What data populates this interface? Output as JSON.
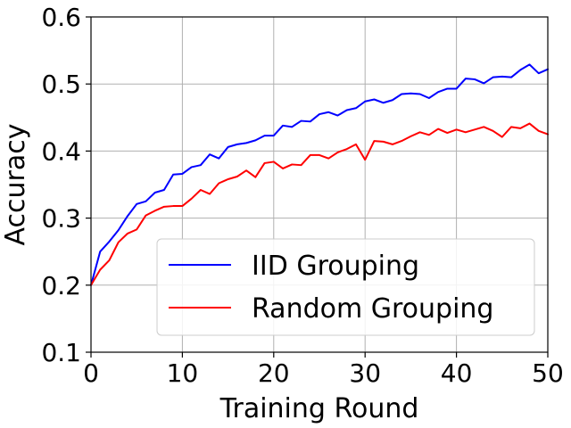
{
  "chart_data": {
    "type": "line",
    "title": "",
    "xlabel": "Training Round",
    "ylabel": "Accuracy",
    "xlim": [
      0,
      50
    ],
    "ylim": [
      0.1,
      0.6
    ],
    "xticks": [
      0,
      10,
      20,
      30,
      40,
      50
    ],
    "yticks": [
      0.1,
      0.2,
      0.3,
      0.4,
      0.5,
      0.6
    ],
    "xtick_labels": [
      "0",
      "10",
      "20",
      "30",
      "40",
      "50"
    ],
    "ytick_labels": [
      "0.1",
      "0.2",
      "0.3",
      "0.4",
      "0.5",
      "0.6"
    ],
    "grid": true,
    "legend_position": "lower-right",
    "x": [
      0,
      1,
      2,
      3,
      4,
      5,
      6,
      7,
      8,
      9,
      10,
      11,
      12,
      13,
      14,
      15,
      16,
      17,
      18,
      19,
      20,
      21,
      22,
      23,
      24,
      25,
      26,
      27,
      28,
      29,
      30,
      31,
      32,
      33,
      34,
      35,
      36,
      37,
      38,
      39,
      40,
      41,
      42,
      43,
      44,
      45,
      46,
      47,
      48,
      49,
      50
    ],
    "series": [
      {
        "name": "IID Grouping",
        "color": "#0000ff",
        "values": [
          0.2,
          0.25,
          0.265,
          0.282,
          0.303,
          0.321,
          0.325,
          0.338,
          0.342,
          0.365,
          0.366,
          0.376,
          0.379,
          0.395,
          0.389,
          0.406,
          0.41,
          0.412,
          0.416,
          0.423,
          0.423,
          0.438,
          0.436,
          0.445,
          0.444,
          0.455,
          0.458,
          0.453,
          0.461,
          0.464,
          0.474,
          0.477,
          0.472,
          0.476,
          0.485,
          0.486,
          0.485,
          0.479,
          0.488,
          0.493,
          0.493,
          0.508,
          0.507,
          0.501,
          0.51,
          0.511,
          0.51,
          0.521,
          0.529,
          0.516,
          0.522
        ]
      },
      {
        "name": "Random Grouping",
        "color": "#ff0000",
        "values": [
          0.2,
          0.223,
          0.237,
          0.264,
          0.277,
          0.283,
          0.304,
          0.311,
          0.317,
          0.318,
          0.318,
          0.329,
          0.342,
          0.336,
          0.352,
          0.358,
          0.362,
          0.371,
          0.361,
          0.382,
          0.384,
          0.374,
          0.38,
          0.379,
          0.394,
          0.394,
          0.389,
          0.398,
          0.403,
          0.41,
          0.387,
          0.415,
          0.414,
          0.41,
          0.415,
          0.422,
          0.428,
          0.424,
          0.433,
          0.427,
          0.432,
          0.428,
          0.432,
          0.436,
          0.43,
          0.421,
          0.436,
          0.434,
          0.441,
          0.43,
          0.425
        ]
      }
    ]
  }
}
